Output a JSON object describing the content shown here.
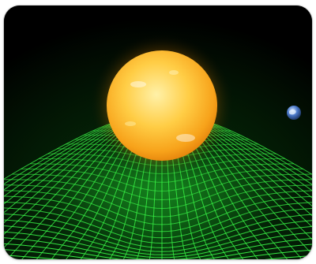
{
  "image": {
    "subject": "sun-warping-spacetime-grid",
    "colors": {
      "background": "#000000",
      "grid": "#3cff4a",
      "glow": "#0a6a14",
      "sun_core": "#ffe68a",
      "sun_mid": "#ffc23a",
      "sun_edge": "#f08a0a",
      "earth": "#4a78c8"
    }
  }
}
